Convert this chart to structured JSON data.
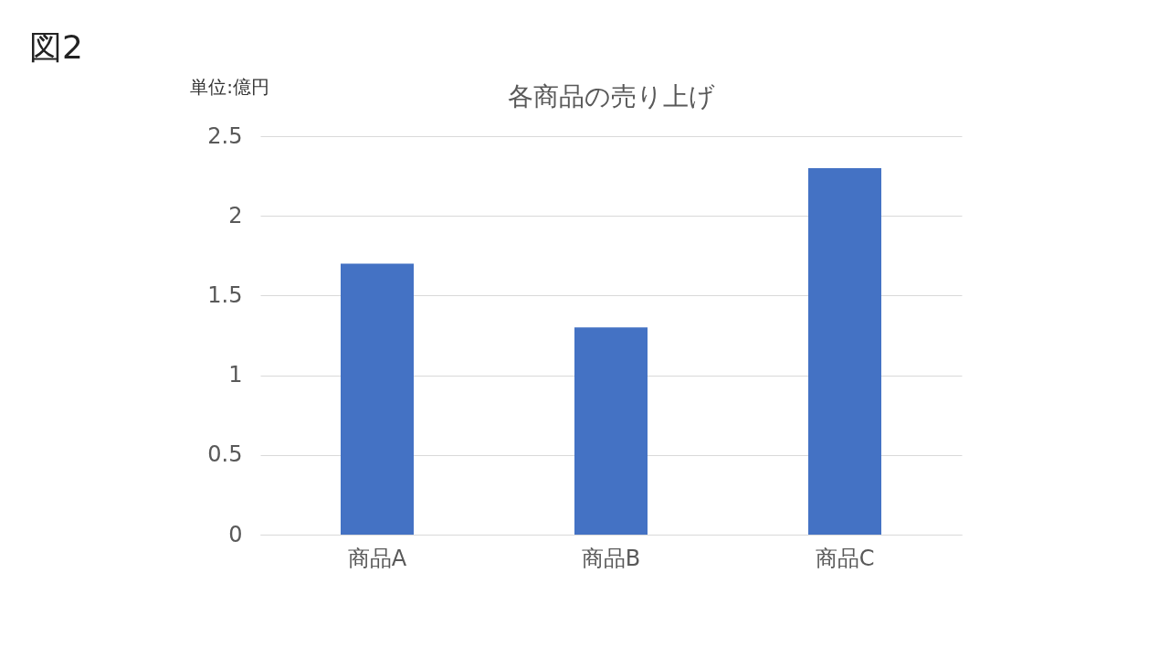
{
  "chart_data": {
    "type": "bar",
    "title": "各商品の売り上げ",
    "ylabel": "単位:億円",
    "annotations": [
      "図2"
    ],
    "categories": [
      "商品A",
      "商品B",
      "商品C"
    ],
    "values": [
      1.7,
      1.3,
      2.3
    ],
    "color": "#4472c4",
    "ylim": [
      0,
      2.5
    ],
    "yticks": [
      0,
      0.5,
      1,
      1.5,
      2,
      2.5
    ],
    "grid": "y"
  }
}
